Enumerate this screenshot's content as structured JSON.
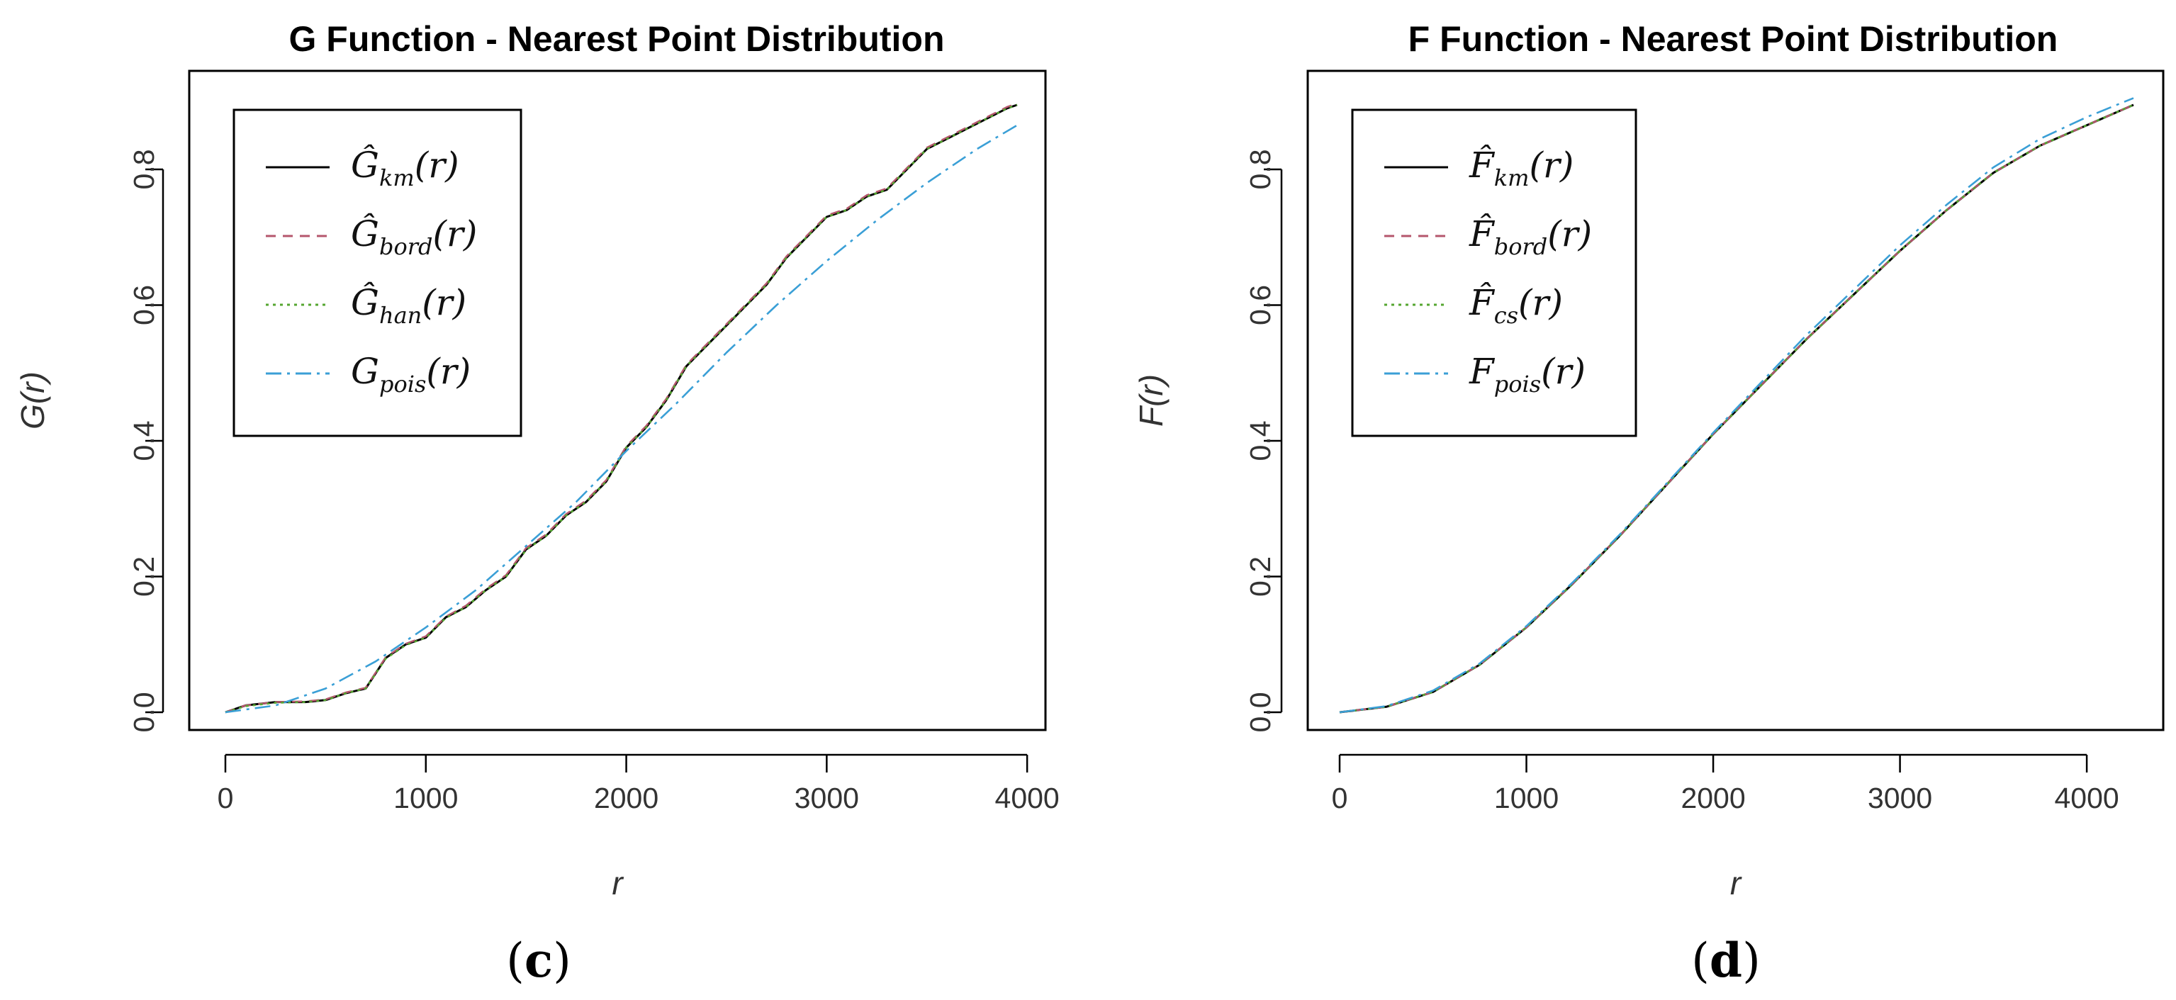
{
  "chart_data": [
    {
      "type": "line",
      "title": "G Function - Nearest Point Distribution",
      "xlabel": "r",
      "ylabel": "G(r)",
      "caption": {
        "open": "(",
        "letter": "c",
        "close": ")"
      },
      "xlim": [
        0,
        4000
      ],
      "ylim": [
        0,
        0.9
      ],
      "xticks": [
        "0",
        "1000",
        "2000",
        "3000",
        "4000"
      ],
      "yticks": [
        "0.0",
        "0.2",
        "0.4",
        "0.6",
        "0.8"
      ],
      "xtick_values": [
        0,
        1000,
        2000,
        3000,
        4000
      ],
      "ytick_values": [
        0,
        0.2,
        0.4,
        0.6,
        0.8
      ],
      "legend_position": "top-left",
      "grid": false,
      "series": [
        {
          "name": "Ĝkm(r)",
          "legend": {
            "base": "Ĝ",
            "sub": "km",
            "tail": "(r)"
          },
          "color": "#000000",
          "dash": "",
          "x": [
            0,
            100,
            250,
            400,
            500,
            600,
            700,
            800,
            900,
            1000,
            1100,
            1200,
            1300,
            1400,
            1500,
            1600,
            1700,
            1800,
            1900,
            2000,
            2100,
            2200,
            2300,
            2400,
            2500,
            2600,
            2700,
            2800,
            2900,
            3000,
            3100,
            3200,
            3300,
            3400,
            3500,
            3600,
            3700,
            3800,
            3900,
            3950
          ],
          "y": [
            0,
            0.01,
            0.015,
            0.015,
            0.018,
            0.028,
            0.035,
            0.08,
            0.1,
            0.11,
            0.14,
            0.155,
            0.18,
            0.2,
            0.24,
            0.26,
            0.29,
            0.31,
            0.34,
            0.39,
            0.42,
            0.46,
            0.51,
            0.54,
            0.57,
            0.6,
            0.63,
            0.67,
            0.7,
            0.73,
            0.74,
            0.76,
            0.77,
            0.8,
            0.83,
            0.845,
            0.86,
            0.875,
            0.89,
            0.895
          ]
        },
        {
          "name": "Ĝbord(r)",
          "legend": {
            "base": "Ĝ",
            "sub": "bord",
            "tail": "(r)"
          },
          "color": "#b5566c",
          "dash": "14,10",
          "x": [
            0,
            100,
            250,
            400,
            500,
            600,
            700,
            800,
            900,
            1000,
            1100,
            1200,
            1300,
            1400,
            1500,
            1600,
            1700,
            1800,
            1900,
            2000,
            2100,
            2200,
            2300,
            2400,
            2500,
            2600,
            2700,
            2800,
            2900,
            3000,
            3100,
            3200,
            3300,
            3400,
            3500,
            3600,
            3700,
            3800,
            3900,
            3950
          ],
          "y": [
            0,
            0.01,
            0.015,
            0.016,
            0.019,
            0.029,
            0.036,
            0.081,
            0.101,
            0.112,
            0.141,
            0.157,
            0.182,
            0.202,
            0.242,
            0.262,
            0.292,
            0.312,
            0.342,
            0.392,
            0.422,
            0.462,
            0.512,
            0.542,
            0.572,
            0.602,
            0.632,
            0.672,
            0.702,
            0.732,
            0.742,
            0.762,
            0.772,
            0.802,
            0.832,
            0.847,
            0.862,
            0.877,
            0.892,
            0.897
          ]
        },
        {
          "name": "Ĝhan(r)",
          "legend": {
            "base": "Ĝ",
            "sub": "han",
            "tail": "(r)"
          },
          "color": "#55a630",
          "dash": "4,6",
          "x": [
            0,
            100,
            250,
            400,
            500,
            600,
            700,
            800,
            900,
            1000,
            1100,
            1200,
            1300,
            1400,
            1500,
            1600,
            1700,
            1800,
            1900,
            2000,
            2100,
            2200,
            2300,
            2400,
            2500,
            2600,
            2700,
            2800,
            2900,
            3000,
            3100,
            3200,
            3300,
            3400,
            3500,
            3600,
            3700,
            3800,
            3900,
            3950
          ],
          "y": [
            0,
            0.009,
            0.014,
            0.015,
            0.018,
            0.028,
            0.035,
            0.079,
            0.099,
            0.11,
            0.139,
            0.155,
            0.18,
            0.2,
            0.239,
            0.26,
            0.29,
            0.31,
            0.34,
            0.39,
            0.42,
            0.46,
            0.51,
            0.54,
            0.57,
            0.6,
            0.63,
            0.67,
            0.7,
            0.73,
            0.74,
            0.76,
            0.77,
            0.8,
            0.83,
            0.845,
            0.86,
            0.875,
            0.89,
            0.895
          ]
        },
        {
          "name": "Gpois(r)",
          "legend": {
            "base": "G",
            "sub": "pois",
            "tail": "(r)"
          },
          "color": "#3a9fd6",
          "dash": "22,8,4,8",
          "x": [
            0,
            250,
            500,
            750,
            1000,
            1250,
            1500,
            1750,
            2000,
            2250,
            2500,
            2750,
            3000,
            3250,
            3500,
            3750,
            3950
          ],
          "y": [
            0,
            0.01,
            0.035,
            0.075,
            0.125,
            0.18,
            0.245,
            0.31,
            0.385,
            0.455,
            0.53,
            0.6,
            0.665,
            0.725,
            0.78,
            0.83,
            0.865
          ]
        }
      ]
    },
    {
      "type": "line",
      "title": "F Function - Nearest Point Distribution",
      "xlabel": "r",
      "ylabel": "F(r)",
      "caption": {
        "open": "(",
        "letter": "d",
        "close": ")"
      },
      "xlim": [
        0,
        4300
      ],
      "ylim": [
        0,
        0.9
      ],
      "xticks": [
        "0",
        "1000",
        "2000",
        "3000",
        "4000"
      ],
      "yticks": [
        "0.0",
        "0.2",
        "0.4",
        "0.6",
        "0.8"
      ],
      "xtick_values": [
        0,
        1000,
        2000,
        3000,
        4000
      ],
      "ytick_values": [
        0,
        0.2,
        0.4,
        0.6,
        0.8
      ],
      "legend_position": "top-left",
      "grid": false,
      "series": [
        {
          "name": "F̂km(r)",
          "legend": {
            "base": "F̂",
            "sub": "km",
            "tail": "(r)"
          },
          "color": "#000000",
          "dash": "",
          "x": [
            0,
            250,
            500,
            750,
            1000,
            1250,
            1500,
            1750,
            2000,
            2250,
            2500,
            2750,
            3000,
            3250,
            3500,
            3750,
            4000,
            4250
          ],
          "y": [
            0,
            0.008,
            0.03,
            0.07,
            0.125,
            0.19,
            0.26,
            0.335,
            0.41,
            0.48,
            0.55,
            0.615,
            0.68,
            0.74,
            0.795,
            0.835,
            0.865,
            0.895
          ]
        },
        {
          "name": "F̂bord(r)",
          "legend": {
            "base": "F̂",
            "sub": "bord",
            "tail": "(r)"
          },
          "color": "#b5566c",
          "dash": "14,10",
          "x": [
            0,
            250,
            500,
            750,
            1000,
            1250,
            1500,
            1750,
            2000,
            2250,
            2500,
            2750,
            3000,
            3250,
            3500,
            3750,
            4000,
            4250
          ],
          "y": [
            0,
            0.008,
            0.03,
            0.07,
            0.125,
            0.19,
            0.26,
            0.335,
            0.41,
            0.48,
            0.55,
            0.615,
            0.68,
            0.74,
            0.795,
            0.835,
            0.865,
            0.895
          ]
        },
        {
          "name": "F̂cs(r)",
          "legend": {
            "base": "F̂",
            "sub": "cs",
            "tail": "(r)"
          },
          "color": "#55a630",
          "dash": "4,6",
          "x": [
            0,
            250,
            500,
            750,
            1000,
            1250,
            1500,
            1750,
            2000,
            2250,
            2500,
            2750,
            3000,
            3250,
            3500,
            3750,
            4000,
            4250
          ],
          "y": [
            0,
            0.008,
            0.03,
            0.07,
            0.125,
            0.19,
            0.26,
            0.335,
            0.41,
            0.48,
            0.55,
            0.615,
            0.68,
            0.74,
            0.795,
            0.835,
            0.865,
            0.895
          ]
        },
        {
          "name": "Fpois(r)",
          "legend": {
            "base": "F",
            "sub": "pois",
            "tail": "(r)"
          },
          "color": "#3a9fd6",
          "dash": "22,8,4,8",
          "x": [
            0,
            250,
            500,
            750,
            1000,
            1250,
            1500,
            1750,
            2000,
            2250,
            2500,
            2750,
            3000,
            3250,
            3500,
            3750,
            4000,
            4250
          ],
          "y": [
            0,
            0.009,
            0.032,
            0.072,
            0.127,
            0.192,
            0.262,
            0.337,
            0.412,
            0.484,
            0.556,
            0.622,
            0.688,
            0.748,
            0.803,
            0.845,
            0.877,
            0.905
          ]
        }
      ]
    }
  ]
}
